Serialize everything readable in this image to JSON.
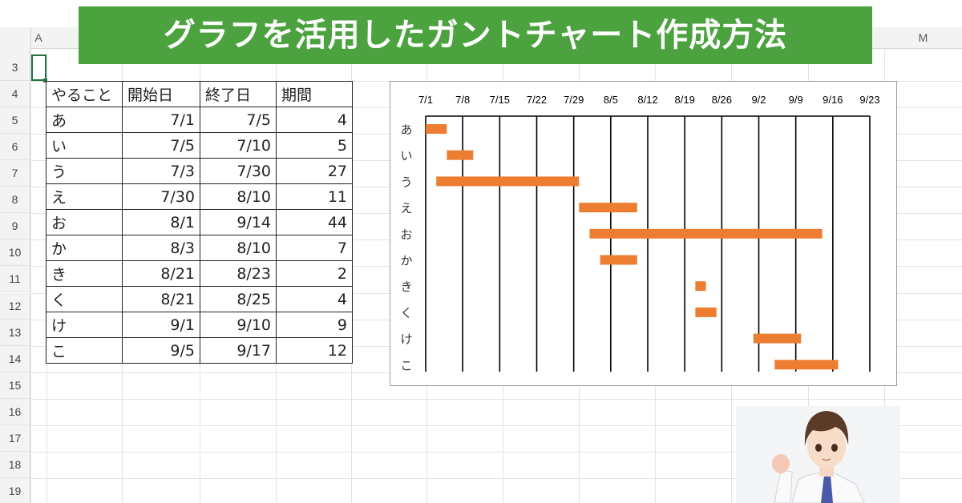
{
  "title_banner": "グラフを活用したガントチャート作成方法",
  "columns": {
    "a": "A",
    "m": "M"
  },
  "rows": [
    "3",
    "4",
    "5",
    "6",
    "7",
    "8",
    "9",
    "10",
    "11",
    "12",
    "13",
    "14",
    "15",
    "16",
    "17",
    "18",
    "19"
  ],
  "table": {
    "headers": [
      "やること",
      "開始日",
      "終了日",
      "期間"
    ],
    "rows": [
      {
        "task": "あ",
        "start": "7/1",
        "end": "7/5",
        "days": "4"
      },
      {
        "task": "い",
        "start": "7/5",
        "end": "7/10",
        "days": "5"
      },
      {
        "task": "う",
        "start": "7/3",
        "end": "7/30",
        "days": "27"
      },
      {
        "task": "え",
        "start": "7/30",
        "end": "8/10",
        "days": "11"
      },
      {
        "task": "お",
        "start": "8/1",
        "end": "9/14",
        "days": "44"
      },
      {
        "task": "か",
        "start": "8/3",
        "end": "8/10",
        "days": "7"
      },
      {
        "task": "き",
        "start": "8/21",
        "end": "8/23",
        "days": "2"
      },
      {
        "task": "く",
        "start": "8/21",
        "end": "8/25",
        "days": "4"
      },
      {
        "task": "け",
        "start": "9/1",
        "end": "9/10",
        "days": "9"
      },
      {
        "task": "こ",
        "start": "9/5",
        "end": "9/17",
        "days": "12"
      }
    ]
  },
  "chart_data": {
    "type": "bar",
    "orientation": "horizontal-stacked-gantt",
    "categories": [
      "あ",
      "い",
      "う",
      "え",
      "お",
      "か",
      "き",
      "く",
      "け",
      "こ"
    ],
    "x_ticks": [
      "7/1",
      "7/8",
      "7/15",
      "7/22",
      "7/29",
      "8/5",
      "8/12",
      "8/19",
      "8/26",
      "9/2",
      "9/9",
      "9/16",
      "9/23"
    ],
    "xlim": [
      "7/1",
      "9/23"
    ],
    "x_axis_position": "top",
    "grid": "vertical",
    "series": [
      {
        "start": [
          "7/1",
          "7/5",
          "7/3",
          "7/30",
          "8/1",
          "8/3",
          "8/21",
          "8/21",
          "9/1",
          "9/5"
        ],
        "end": [
          "7/5",
          "7/10",
          "7/30",
          "8/10",
          "9/14",
          "8/10",
          "8/23",
          "8/25",
          "9/10",
          "9/17"
        ],
        "duration_days": [
          4,
          5,
          27,
          11,
          44,
          7,
          2,
          4,
          9,
          12
        ]
      }
    ],
    "bar_color": "#ed7d31"
  }
}
